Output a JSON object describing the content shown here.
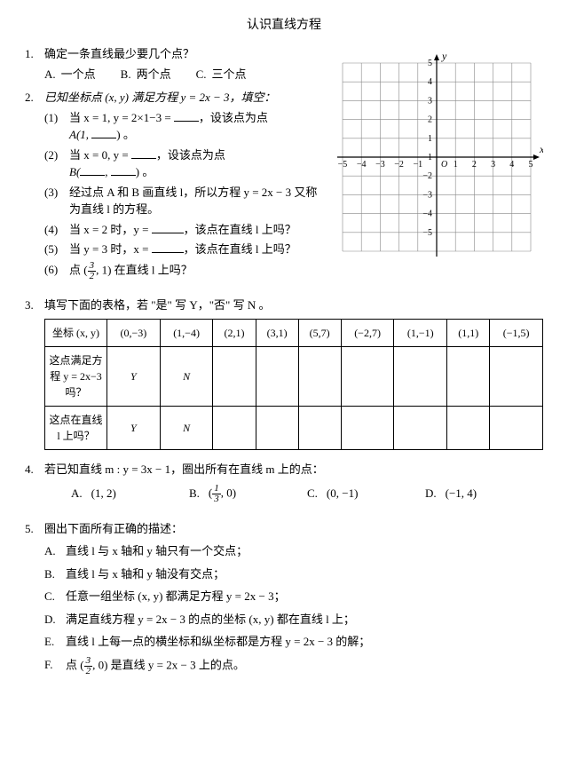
{
  "title": "认识直线方程",
  "q1": {
    "num": "1.",
    "text": "确定一条直线最少要几个点？",
    "opts": {
      "A": "一个点",
      "B": "两个点",
      "C": "三个点"
    }
  },
  "q2": {
    "num": "2.",
    "stem": "已知坐标点 (x, y) 满足方程 y = 2x − 3，填空：",
    "s1a": "当 x = 1, y = 2×1−3 = ",
    "s1b": "，设该点为点",
    "s1c": "A(1, ",
    "s1d": ") 。",
    "s2a": "当 x = 0, y = ",
    "s2b": "，设该点为点",
    "s2c": "B(",
    "s2d": ", ",
    "s2e": ") 。",
    "s3": "经过点 A 和 B 画直线 l，所以方程 y = 2x − 3 又称为直线 l 的方程。",
    "s4a": "当 x = 2 时，y = ",
    "s4b": "，该点在直线 l 上吗？",
    "s5a": "当 y = 3 时，x = ",
    "s5b": "，该点在直线 l 上吗？",
    "s6a": "点 (",
    "s6b": ", 1) 在直线 l 上吗？",
    "frac": {
      "num": "3",
      "den": "2"
    }
  },
  "grid": {
    "xlabel": "x",
    "ylabel": "y",
    "size": 230,
    "cells": 10,
    "min": -5,
    "max": 5,
    "ticks": [
      "−5",
      "−4",
      "−3",
      "−2",
      "−1",
      "1",
      "2",
      "3",
      "4",
      "5"
    ],
    "origin_label": "O",
    "axis_color": "#000",
    "grid_color": "#888",
    "bg": "#fff",
    "font_size": 10
  },
  "q3": {
    "num": "3.",
    "stem": "填写下面的表格，若 \"是\" 写 Y，\"否\" 写 N 。",
    "headers": [
      "坐标 (x, y)",
      "(0,−3)",
      "(1,−4)",
      "(2,1)",
      "(3,1)",
      "(5,7)",
      "(−2,7)",
      "(1,−1)",
      "(1,1)",
      "(−1,5)"
    ],
    "row1_label": "这点满足方程 y = 2x−3 吗？",
    "row2_label": "这点在直线 l 上吗？",
    "row1": [
      "Y",
      "N",
      "",
      "",
      "",
      "",
      "",
      "",
      ""
    ],
    "row2": [
      "Y",
      "N",
      "",
      "",
      "",
      "",
      "",
      "",
      ""
    ]
  },
  "q4": {
    "num": "4.",
    "stem": "若已知直线 m : y = 3x − 1，圈出所有在直线 m 上的点：",
    "opts": {
      "A": "(1, 2)",
      "Bpre": "(",
      "Bpost": ", 0)",
      "Bfrac": {
        "num": "1",
        "den": "3"
      },
      "C": "(0, −1)",
      "D": "(−1, 4)"
    }
  },
  "q5": {
    "num": "5.",
    "stem": "圈出下面所有正确的描述：",
    "items": {
      "A": "直线 l 与 x 轴和 y 轴只有一个交点；",
      "B": "直线 l 与 x 轴和 y 轴没有交点；",
      "C": "任意一组坐标 (x, y) 都满足方程 y = 2x − 3；",
      "D": "满足直线方程 y = 2x − 3 的点的坐标 (x, y) 都在直线 l 上；",
      "E": "直线 l 上每一点的横坐标和纵坐标都是方程 y = 2x − 3 的解；",
      "Fpre": "点 (",
      "Fpost": ", 0) 是直线 y = 2x − 3 上的点。",
      "Ffrac": {
        "num": "3",
        "den": "2"
      }
    }
  }
}
